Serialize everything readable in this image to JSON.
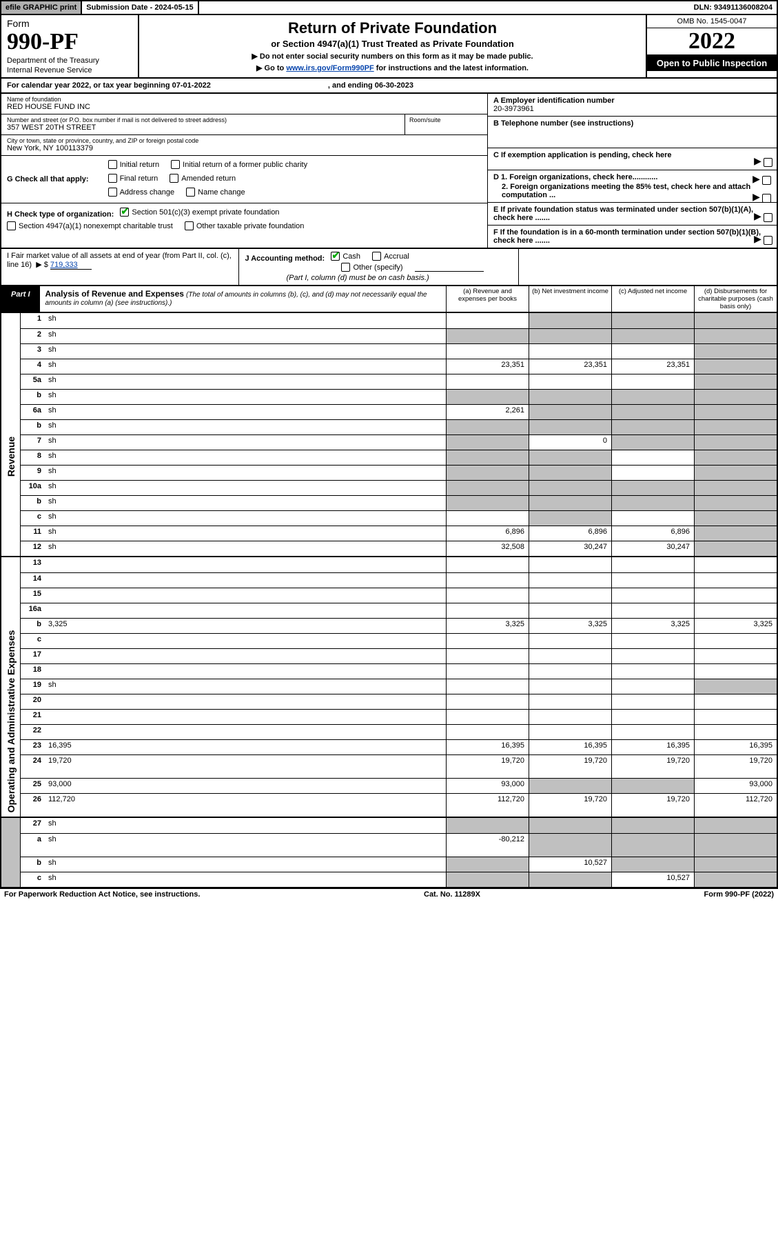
{
  "topbar": {
    "efile": "efile GRAPHIC print",
    "submission": "Submission Date - 2024-05-15",
    "dln": "DLN: 93491136008204"
  },
  "header": {
    "form_word": "Form",
    "form_no": "990-PF",
    "dept1": "Department of the Treasury",
    "dept2": "Internal Revenue Service",
    "title": "Return of Private Foundation",
    "sub1": "or Section 4947(a)(1) Trust Treated as Private Foundation",
    "line1": "▶ Do not enter social security numbers on this form as it may be made public.",
    "line2_a": "▶ Go to ",
    "line2_link": "www.irs.gov/Form990PF",
    "line2_b": " for instructions and the latest information.",
    "omb": "OMB No. 1545-0047",
    "year": "2022",
    "open": "Open to Public Inspection"
  },
  "calyear": {
    "a": "For calendar year 2022, or tax year beginning 07-01-2022",
    "b": ", and ending 06-30-2023"
  },
  "info": {
    "name_lbl": "Name of foundation",
    "name_val": "RED HOUSE FUND INC",
    "addr_lbl": "Number and street (or P.O. box number if mail is not delivered to street address)",
    "addr_val": "357 WEST 20TH STREET",
    "room_lbl": "Room/suite",
    "city_lbl": "City or town, state or province, country, and ZIP or foreign postal code",
    "city_val": "New York, NY  100113379",
    "A_lbl": "A Employer identification number",
    "A_val": "20-3973961",
    "B_lbl": "B Telephone number (see instructions)",
    "C_lbl": "C If exemption application is pending, check here",
    "D1": "D 1. Foreign organizations, check here............",
    "D2": "2. Foreign organizations meeting the 85% test, check here and attach computation ...",
    "E": "E  If private foundation status was terminated under section 507(b)(1)(A), check here .......",
    "F": "F  If the foundation is in a 60-month termination under section 507(b)(1)(B), check here .......",
    "G": "G Check all that apply:",
    "g_opts": [
      "Initial return",
      "Initial return of a former public charity",
      "Final return",
      "Amended return",
      "Address change",
      "Name change"
    ],
    "H": "H Check type of organization:",
    "h1": "Section 501(c)(3) exempt private foundation",
    "h2": "Section 4947(a)(1) nonexempt charitable trust",
    "h3": "Other taxable private foundation",
    "I1": "I Fair market value of all assets at end of year (from Part II, col. (c), line 16)",
    "I_pre": "▶ $",
    "I_val": "719,333",
    "J": "J Accounting method:",
    "j_cash": "Cash",
    "j_acc": "Accrual",
    "j_other": "Other (specify)",
    "j_note": "(Part I, column (d) must be on cash basis.)"
  },
  "part1": {
    "badge": "Part I",
    "title": "Analysis of Revenue and Expenses",
    "title_note": " (The total of amounts in columns (b), (c), and (d) may not necessarily equal the amounts in column (a) (see instructions).)",
    "col_a": "(a)   Revenue and expenses per books",
    "col_b": "(b)   Net investment income",
    "col_c": "(c)   Adjusted net income",
    "col_d": "(d)   Disbursements for charitable purposes (cash basis only)"
  },
  "side": {
    "revenue": "Revenue",
    "expenses": "Operating and Administrative Expenses"
  },
  "rows": [
    {
      "n": "1",
      "d": "sh",
      "a": "",
      "b": "sh",
      "c": "sh"
    },
    {
      "n": "2",
      "d": "sh",
      "a": "sh",
      "b": "sh",
      "c": "sh"
    },
    {
      "n": "3",
      "d": "sh",
      "a": "",
      "b": "",
      "c": ""
    },
    {
      "n": "4",
      "d": "sh",
      "a": "23,351",
      "b": "23,351",
      "c": "23,351"
    },
    {
      "n": "5a",
      "d": "sh",
      "a": "",
      "b": "",
      "c": ""
    },
    {
      "n": "b",
      "d": "sh",
      "a": "sh",
      "b": "sh",
      "c": "sh"
    },
    {
      "n": "6a",
      "d": "sh",
      "a": "2,261",
      "b": "sh",
      "c": "sh"
    },
    {
      "n": "b",
      "d": "sh",
      "a": "sh",
      "b": "sh",
      "c": "sh"
    },
    {
      "n": "7",
      "d": "sh",
      "a": "sh",
      "b": "0",
      "c": "sh"
    },
    {
      "n": "8",
      "d": "sh",
      "a": "sh",
      "b": "sh",
      "c": ""
    },
    {
      "n": "9",
      "d": "sh",
      "a": "sh",
      "b": "sh",
      "c": ""
    },
    {
      "n": "10a",
      "d": "sh",
      "a": "sh",
      "b": "sh",
      "c": "sh"
    },
    {
      "n": "b",
      "d": "sh",
      "a": "sh",
      "b": "sh",
      "c": "sh"
    },
    {
      "n": "c",
      "d": "sh",
      "a": "",
      "b": "sh",
      "c": ""
    },
    {
      "n": "11",
      "d": "sh",
      "a": "6,896",
      "b": "6,896",
      "c": "6,896"
    },
    {
      "n": "12",
      "d": "sh",
      "a": "32,508",
      "b": "30,247",
      "c": "30,247"
    }
  ],
  "exp_rows": [
    {
      "n": "13",
      "d": "",
      "a": "",
      "b": "",
      "c": ""
    },
    {
      "n": "14",
      "d": "",
      "a": "",
      "b": "",
      "c": ""
    },
    {
      "n": "15",
      "d": "",
      "a": "",
      "b": "",
      "c": ""
    },
    {
      "n": "16a",
      "d": "",
      "a": "",
      "b": "",
      "c": ""
    },
    {
      "n": "b",
      "d": "3,325",
      "a": "3,325",
      "b": "3,325",
      "c": "3,325"
    },
    {
      "n": "c",
      "d": "",
      "a": "",
      "b": "",
      "c": ""
    },
    {
      "n": "17",
      "d": "",
      "a": "",
      "b": "",
      "c": ""
    },
    {
      "n": "18",
      "d": "",
      "a": "",
      "b": "",
      "c": ""
    },
    {
      "n": "19",
      "d": "sh",
      "a": "",
      "b": "",
      "c": ""
    },
    {
      "n": "20",
      "d": "",
      "a": "",
      "b": "",
      "c": ""
    },
    {
      "n": "21",
      "d": "",
      "a": "",
      "b": "",
      "c": ""
    },
    {
      "n": "22",
      "d": "",
      "a": "",
      "b": "",
      "c": ""
    },
    {
      "n": "23",
      "d": "16,395",
      "a": "16,395",
      "b": "16,395",
      "c": "16,395"
    },
    {
      "n": "24",
      "d": "19,720",
      "a": "19,720",
      "b": "19,720",
      "c": "19,720",
      "tall": true
    },
    {
      "n": "25",
      "d": "93,000",
      "a": "93,000",
      "b": "sh",
      "c": "sh"
    },
    {
      "n": "26",
      "d": "112,720",
      "a": "112,720",
      "b": "19,720",
      "c": "19,720",
      "tall": true
    }
  ],
  "bottom_rows": [
    {
      "n": "27",
      "d": "sh",
      "a": "sh",
      "b": "sh",
      "c": "sh"
    },
    {
      "n": "a",
      "d": "sh",
      "a": "-80,212",
      "b": "sh",
      "c": "sh",
      "tall": true
    },
    {
      "n": "b",
      "d": "sh",
      "a": "sh",
      "b": "10,527",
      "c": "sh"
    },
    {
      "n": "c",
      "d": "sh",
      "a": "sh",
      "b": "sh",
      "c": "10,527"
    }
  ],
  "footer": {
    "left": "For Paperwork Reduction Act Notice, see instructions.",
    "mid": "Cat. No. 11289X",
    "right": "Form 990-PF (2022)"
  },
  "colors": {
    "shade": "#c0c0c0",
    "link": "#0645ad",
    "check": "#0a0"
  }
}
